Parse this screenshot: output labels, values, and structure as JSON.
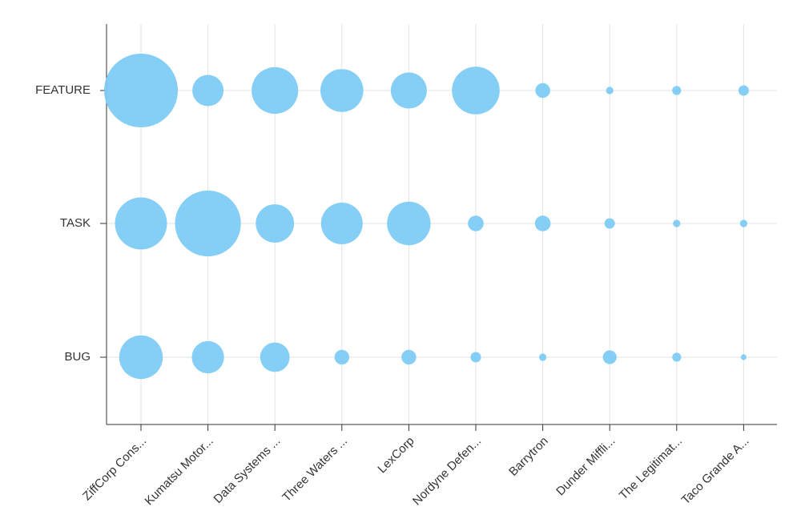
{
  "chart_data": {
    "type": "bubble",
    "title": "",
    "xlabel": "",
    "ylabel": "",
    "grid": true,
    "legend": "none",
    "bubble_color": "#7ECBF6",
    "categories": [
      "ZiffCorp Cons...",
      "Kumatsu Motor...",
      "Data Systems ...",
      "Three Waters ...",
      "LexCorp",
      "Nordyne Defen...",
      "Barrytron",
      "Dunder Miffli...",
      "The Legitimat...",
      "Taco Grande A..."
    ],
    "y_categories": [
      "FEATURE",
      "TASK",
      "BUG"
    ],
    "series": [
      {
        "category": "FEATURE",
        "values": [
          100,
          18,
          40,
          34,
          24,
          42,
          4,
          1,
          1.5,
          2
        ]
      },
      {
        "category": "TASK",
        "values": [
          50,
          80,
          27,
          32,
          35,
          4.5,
          4.5,
          2,
          1,
          1
        ]
      },
      {
        "category": "BUG",
        "values": [
          35,
          19,
          16,
          4,
          4,
          2,
          1,
          3.5,
          1.5,
          0.6
        ]
      }
    ]
  }
}
